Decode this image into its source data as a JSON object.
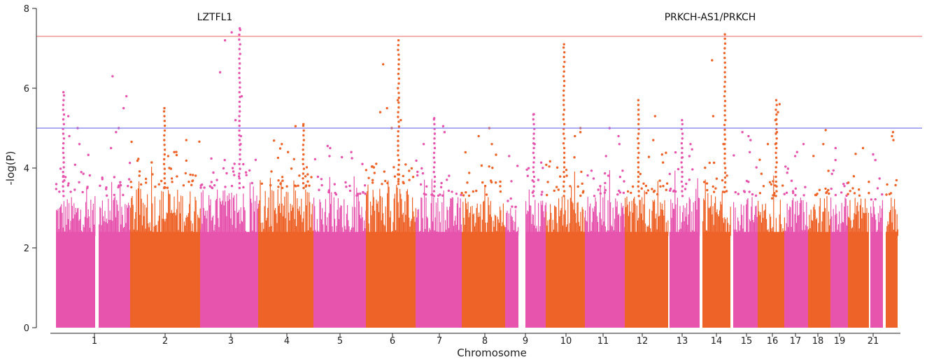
{
  "chart_data": {
    "type": "scatter",
    "subtype": "manhattan",
    "title": "",
    "xlabel": "Chromosome",
    "ylabel": "-log(P)",
    "ylim": [
      0,
      8
    ],
    "yticks": [
      0,
      2,
      4,
      6,
      8
    ],
    "xtick_labels": [
      "1",
      "2",
      "3",
      "4",
      "5",
      "6",
      "7",
      "8",
      "9",
      "10",
      "11",
      "12",
      "13",
      "14",
      "15",
      "16",
      "17",
      "18",
      "19",
      "21"
    ],
    "grid": false,
    "legend": "none",
    "colors": {
      "odd": "#e754ae",
      "even": "#ee6328",
      "genome_wide_line": "#f08080",
      "suggestive_line": "#7b7bef"
    },
    "thresholds": {
      "genome_wide": 7.3,
      "suggestive": 5.0
    },
    "chromosomes": [
      {
        "chr": "1",
        "label": "1",
        "color": "odd",
        "base_max": 3.3,
        "peaks": [
          5.9,
          5.3,
          5.0,
          4.8,
          4.6
        ]
      },
      {
        "chr": "1b",
        "label": "",
        "color": "odd",
        "base_max": 3.3,
        "peaks": [
          5.0,
          4.9,
          4.5,
          6.3,
          5.8,
          5.5
        ]
      },
      {
        "chr": "2",
        "label": "2",
        "color": "even",
        "base_max": 3.5,
        "peaks": [
          5.5,
          4.7,
          4.4,
          4.3,
          4.0
        ]
      },
      {
        "chr": "3",
        "label": "3",
        "color": "odd",
        "base_max": 3.5,
        "peaks": [
          7.5,
          7.4,
          7.2,
          6.4,
          5.8,
          5.2,
          4.8,
          4.6
        ]
      },
      {
        "chr": "4",
        "label": "4",
        "color": "even",
        "base_max": 3.5,
        "peaks": [
          5.1,
          4.6,
          5.05,
          4.4
        ]
      },
      {
        "chr": "5",
        "label": "5",
        "color": "odd",
        "base_max": 3.3,
        "peaks": [
          4.5,
          4.4,
          4.3
        ]
      },
      {
        "chr": "6",
        "label": "6",
        "color": "even",
        "base_max": 3.6,
        "peaks": [
          7.2,
          6.6,
          5.7,
          5.5,
          5.4,
          5.2,
          5.0
        ]
      },
      {
        "chr": "7",
        "label": "7",
        "color": "odd",
        "base_max": 3.3,
        "peaks": [
          5.25,
          4.9,
          5.05,
          4.6
        ]
      },
      {
        "chr": "8",
        "label": "8",
        "color": "even",
        "base_max": 3.3,
        "peaks": [
          5.0,
          4.8,
          4.6
        ]
      },
      {
        "chr": "9",
        "label": "9",
        "color": "odd",
        "base_max": 3.3,
        "peaks": [
          5.35,
          4.6
        ]
      },
      {
        "chr": "10",
        "label": "10",
        "color": "even",
        "base_max": 3.3,
        "peaks": [
          7.1,
          5.0,
          4.9,
          4.8
        ]
      },
      {
        "chr": "11",
        "label": "11",
        "color": "odd",
        "base_max": 3.3,
        "peaks": [
          5.0,
          4.8,
          4.6
        ]
      },
      {
        "chr": "12",
        "label": "12",
        "color": "even",
        "base_max": 3.3,
        "peaks": [
          5.7,
          5.3,
          4.7
        ]
      },
      {
        "chr": "13",
        "label": "13",
        "color": "odd",
        "base_max": 3.3,
        "peaks": [
          5.2,
          4.6
        ]
      },
      {
        "chr": "14",
        "label": "14",
        "color": "even",
        "base_max": 3.4,
        "peaks": [
          7.35,
          6.7,
          5.3,
          4.6
        ]
      },
      {
        "chr": "15",
        "label": "15",
        "color": "odd",
        "base_max": 3.3,
        "peaks": [
          4.9,
          4.8,
          4.7
        ]
      },
      {
        "chr": "16",
        "label": "16",
        "color": "even",
        "base_max": 3.3,
        "peaks": [
          5.7,
          5.6,
          5.4,
          5.2,
          4.9,
          4.6
        ]
      },
      {
        "chr": "17",
        "label": "17",
        "color": "odd",
        "base_max": 3.3,
        "peaks": [
          4.6,
          4.4,
          4.3
        ]
      },
      {
        "chr": "18",
        "label": "18",
        "color": "even",
        "base_max": 3.3,
        "peaks": [
          4.95,
          4.6
        ]
      },
      {
        "chr": "19",
        "label": "19",
        "color": "odd",
        "base_max": 3.3,
        "peaks": [
          4.5,
          4.2
        ]
      },
      {
        "chr": "20",
        "label": "",
        "color": "even",
        "base_max": 3.3,
        "peaks": [
          4.5
        ]
      },
      {
        "chr": "21",
        "label": "21",
        "color": "odd",
        "base_max": 3.2,
        "peaks": [
          4.2
        ]
      },
      {
        "chr": "22",
        "label": "",
        "color": "even",
        "base_max": 3.3,
        "peaks": [
          4.9,
          4.8,
          4.7
        ]
      }
    ],
    "annotations": [
      {
        "text": "LZTFL1",
        "chr": "3"
      },
      {
        "text": "PRKCH-AS1/PRKCH",
        "chr": "14"
      }
    ]
  }
}
